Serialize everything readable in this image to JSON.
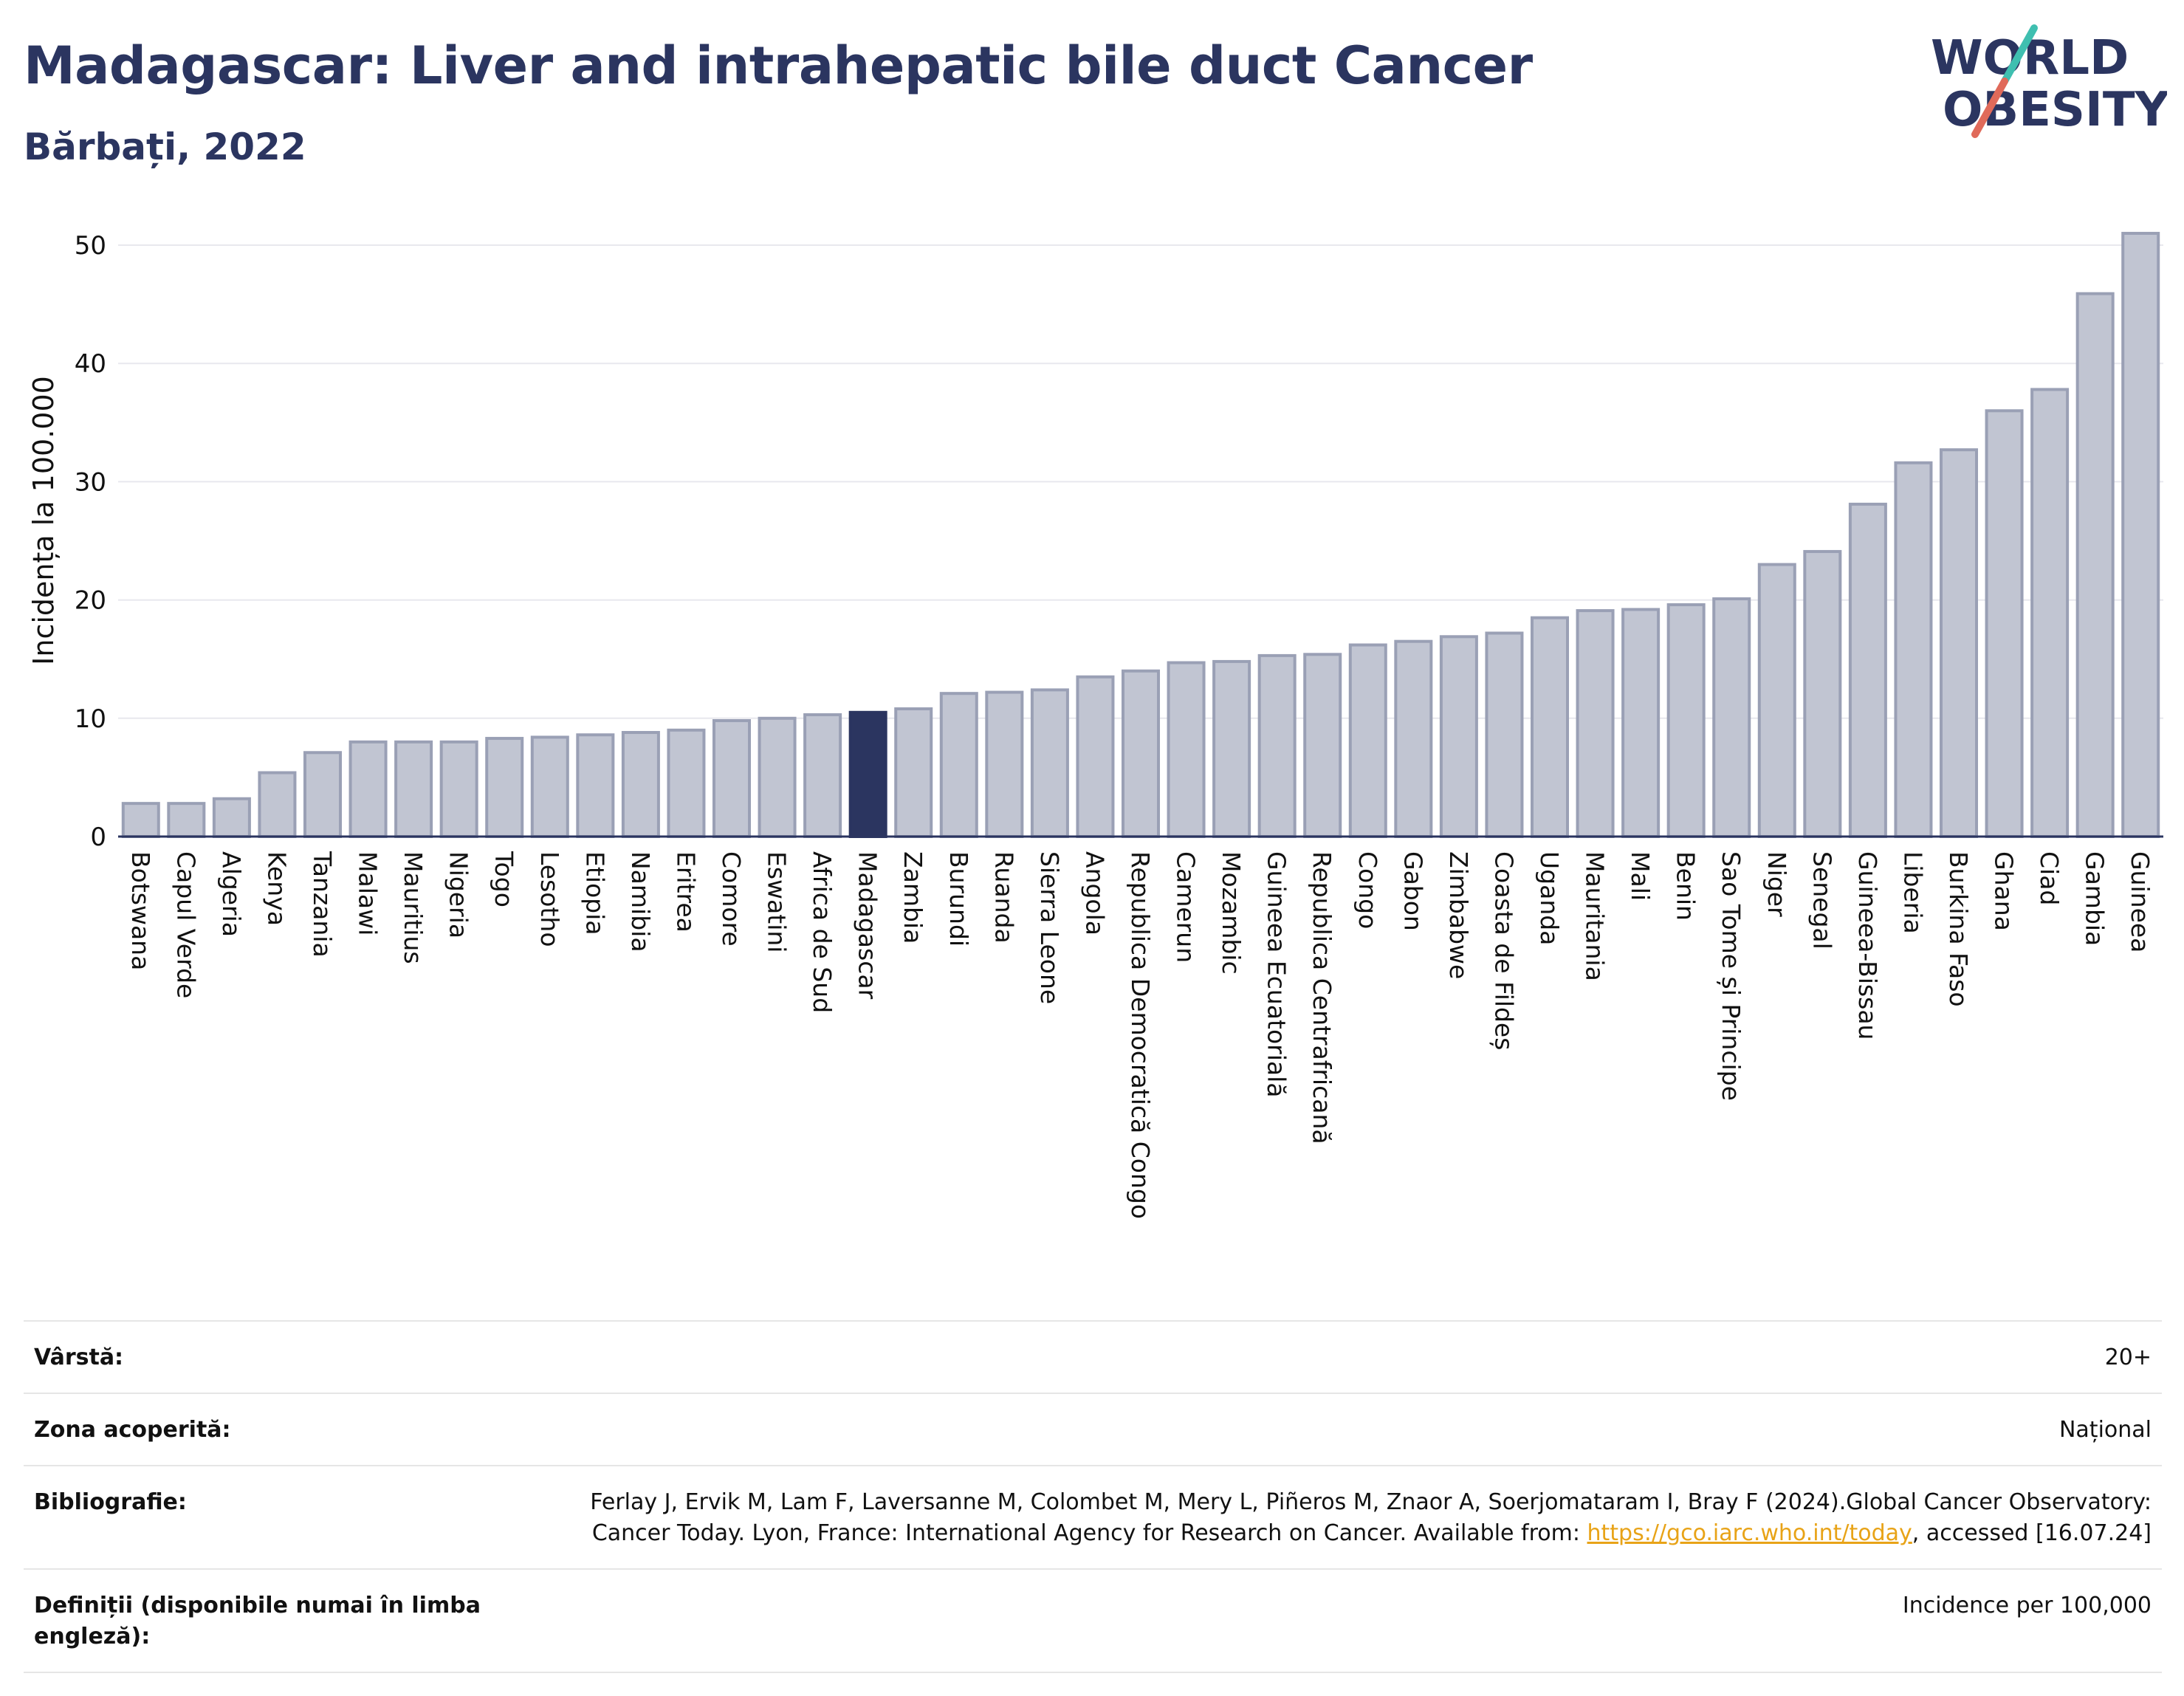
{
  "header": {
    "title": "Madagascar: Liver and intrahepatic bile duct Cancer",
    "subtitle": "Bărbați, 2022"
  },
  "logo": {
    "line1": "WORLD",
    "line2": "OBESITY",
    "name": "world-obesity-logo"
  },
  "chart_data": {
    "type": "bar",
    "title": "Madagascar: Liver and intrahepatic bile duct Cancer",
    "subtitle": "Bărbați, 2022",
    "ylabel": "Incidența la 100.000",
    "xlabel": "",
    "ylim": [
      0,
      52
    ],
    "yticks": [
      0,
      10,
      20,
      30,
      40,
      50
    ],
    "grid": true,
    "highlight": "Madagascar",
    "colors": {
      "bar": "#c1c5d2",
      "bar_edge": "#9aa0b5",
      "highlight": "#2b3560",
      "grid": "#e8e8ee",
      "axis": "#2b3560"
    },
    "categories": [
      "Botswana",
      "Capul Verde",
      "Algeria",
      "Kenya",
      "Tanzania",
      "Malawi",
      "Mauritius",
      "Nigeria",
      "Togo",
      "Lesotho",
      "Etiopia",
      "Namibia",
      "Eritrea",
      "Comore",
      "Eswatini",
      "Africa de Sud",
      "Madagascar",
      "Zambia",
      "Burundi",
      "Ruanda",
      "Sierra Leone",
      "Angola",
      "Republica Democratică Congo",
      "Camerun",
      "Mozambic",
      "Guineea Ecuatorială",
      "Republica Centrafricană",
      "Congo",
      "Gabon",
      "Zimbabwe",
      "Coasta de Fildeș",
      "Uganda",
      "Mauritania",
      "Mali",
      "Benin",
      "Sao Tome și Principe",
      "Niger",
      "Senegal",
      "Guineea-Bissau",
      "Liberia",
      "Burkina Faso",
      "Ghana",
      "Ciad",
      "Gambia",
      "Guineea"
    ],
    "values": [
      2.8,
      2.8,
      3.2,
      5.4,
      7.1,
      8.0,
      8.0,
      8.0,
      8.3,
      8.4,
      8.6,
      8.8,
      9.0,
      9.8,
      10.0,
      10.3,
      10.5,
      10.8,
      12.1,
      12.2,
      12.4,
      13.5,
      14.0,
      14.7,
      14.8,
      15.3,
      15.4,
      16.2,
      16.5,
      16.9,
      17.2,
      18.5,
      19.1,
      19.2,
      19.6,
      20.1,
      23.0,
      24.1,
      28.1,
      31.6,
      32.7,
      36.0,
      37.8,
      45.9,
      51.0
    ]
  },
  "meta": [
    {
      "label": "Vârstă:",
      "value": "20+"
    },
    {
      "label": "Zona acoperită:",
      "value": "Național"
    },
    {
      "label": "Bibliografie:",
      "value_before": "Ferlay J, Ervik M, Lam F, Laversanne M, Colombet M, Mery L, Piñeros M, Znaor A, Soerjomataram I, Bray F (2024).Global Cancer Observatory: Cancer Today. Lyon, France: International Agency for Research on Cancer. Available from: ",
      "link": "https://gco.iarc.who.int/today",
      "value_after": ", accessed [16.07.24]"
    },
    {
      "label": "Definiții (disponibile numai în limba engleză):",
      "value": "Incidence per 100,000"
    }
  ]
}
